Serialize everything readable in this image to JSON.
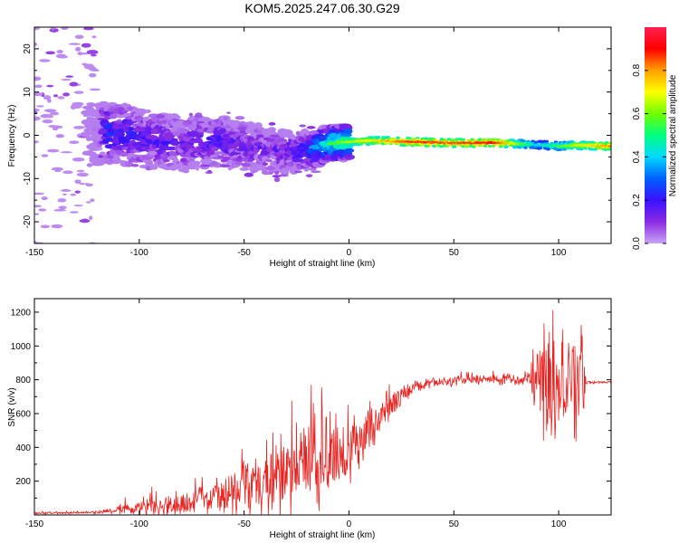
{
  "figure_title": "KOM5.2025.247.06.30.G29",
  "chart_data": [
    {
      "type": "heatmap",
      "title": "",
      "xlabel": "Height of straight line (km)",
      "ylabel": "Frequency (Hz)",
      "xlim": [
        -150,
        125
      ],
      "ylim": [
        -25,
        25
      ],
      "xticks": [
        -150,
        -100,
        -50,
        0,
        50,
        100
      ],
      "xtick_labels": [
        "-150",
        "-100",
        "-50",
        "0",
        "50",
        "100"
      ],
      "yticks": [
        -20,
        -10,
        0,
        10,
        20
      ],
      "ytick_labels": [
        "-20",
        "-10",
        "0",
        "10",
        "20"
      ],
      "colorbar": {
        "label": "Normalized spectral amplitude",
        "range": [
          0,
          1
        ],
        "ticks": [
          0.0,
          0.2,
          0.4,
          0.6,
          0.8
        ],
        "tick_labels": [
          "0.0",
          "0.2",
          "0.4",
          "0.6",
          "0.8"
        ],
        "colormap": [
          "#c9a3f5",
          "#8b2be2",
          "#3a10ff",
          "#0060ff",
          "#00d8ff",
          "#00ff80",
          "#70ff00",
          "#ffff00",
          "#ffa000",
          "#ff0000",
          "#ff2050"
        ]
      },
      "ridge": {
        "description": "dominant Doppler-frequency trace",
        "x": [
          -150,
          -120,
          -115,
          -100,
          -80,
          -60,
          -50,
          -40,
          -30,
          -20,
          -10,
          0,
          10,
          30,
          50,
          70,
          90,
          100,
          110,
          125
        ],
        "freq": [
          0.0,
          0.0,
          0.8,
          -0.5,
          -2.0,
          -1.5,
          -2.5,
          -3.0,
          -4.0,
          -3.5,
          -2.0,
          -1.5,
          -1.2,
          -1.5,
          -1.8,
          -1.7,
          -2.2,
          -2.5,
          -2.3,
          -2.5
        ],
        "peak_amplitude": [
          0.02,
          0.05,
          0.3,
          0.25,
          0.2,
          0.25,
          0.2,
          0.18,
          0.2,
          0.3,
          0.55,
          0.65,
          0.72,
          0.88,
          0.85,
          0.9,
          0.4,
          0.55,
          0.7,
          0.82
        ]
      },
      "noise_region": {
        "x": [
          -150,
          -120
        ],
        "freq": [
          -25,
          25
        ],
        "amplitude": 0.02
      }
    },
    {
      "type": "line",
      "title": "",
      "xlabel": "Height of straight line (km)",
      "ylabel": "SNR (v/v)",
      "xlim": [
        -150,
        125
      ],
      "ylim": [
        0,
        1280
      ],
      "xticks": [
        -150,
        -100,
        -50,
        0,
        50,
        100
      ],
      "xtick_labels": [
        "-150",
        "-100",
        "-50",
        "0",
        "50",
        "100"
      ],
      "yticks": [
        200,
        400,
        600,
        800,
        1000,
        1200
      ],
      "ytick_labels": [
        "200",
        "400",
        "600",
        "800",
        "1000",
        "1200"
      ],
      "color": "#e8221f",
      "trend": {
        "x": [
          -150,
          -120,
          -100,
          -80,
          -60,
          -50,
          -40,
          -30,
          -20,
          -10,
          0,
          10,
          20,
          30,
          40,
          50,
          60,
          70,
          80,
          90,
          100,
          110,
          125
        ],
        "y": [
          10,
          15,
          50,
          70,
          120,
          160,
          200,
          250,
          290,
          330,
          380,
          500,
          650,
          750,
          780,
          790,
          800,
          800,
          800,
          790,
          790,
          780,
          790
        ]
      },
      "noise_amplitude": {
        "x": [
          -150,
          -120,
          -110,
          -100,
          -70,
          -50,
          -40,
          -30,
          -20,
          -10,
          0,
          10,
          20,
          30,
          40,
          85,
          88,
          92,
          95,
          98,
          100,
          105,
          108,
          112,
          113,
          125
        ],
        "amp": [
          6,
          8,
          30,
          60,
          80,
          160,
          220,
          260,
          280,
          280,
          200,
          170,
          100,
          40,
          30,
          40,
          150,
          350,
          450,
          650,
          300,
          250,
          400,
          380,
          10,
          10
        ]
      }
    }
  ]
}
